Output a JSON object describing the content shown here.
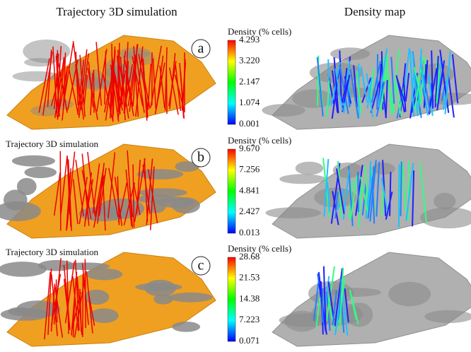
{
  "headers": {
    "left": "Trajectory 3D simulation",
    "right": "Density map"
  },
  "panels": [
    {
      "letter": "a",
      "colorbar": {
        "title": "Density (% cells)",
        "ticks": [
          "4.293",
          "3.220",
          "2.147",
          "1.074",
          "0.001"
        ]
      }
    },
    {
      "letter": "b",
      "subtitle": "Trajectory 3D simulation",
      "colorbar": {
        "title": "Density (% cells)",
        "ticks": [
          "9.670",
          "7.256",
          "4.841",
          "2.427",
          "0.013"
        ]
      }
    },
    {
      "letter": "c",
      "subtitle": "Trajectory 3D simulation",
      "colorbar": {
        "title": "Density (% cells)",
        "ticks": [
          "28.68",
          "21.53",
          "14.38",
          "7.223",
          "0.071"
        ]
      }
    }
  ]
}
